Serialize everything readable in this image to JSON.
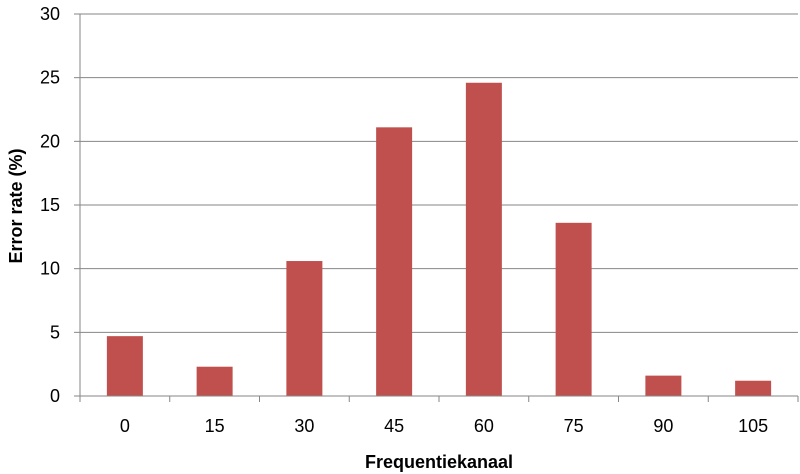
{
  "chart_data": {
    "type": "bar",
    "categories": [
      "0",
      "15",
      "30",
      "45",
      "60",
      "75",
      "90",
      "105"
    ],
    "values": [
      4.7,
      2.3,
      10.6,
      21.1,
      24.6,
      13.6,
      1.6,
      1.2
    ],
    "title": "",
    "xlabel": "Frequentiekanaal",
    "ylabel": "Error rate (%)",
    "ylim": [
      0,
      30
    ],
    "yticks": [
      "0",
      "5",
      "10",
      "15",
      "20",
      "25",
      "30"
    ],
    "grid": true,
    "legend": "none",
    "bar_color": "#c0504d",
    "grid_color": "#868686"
  }
}
